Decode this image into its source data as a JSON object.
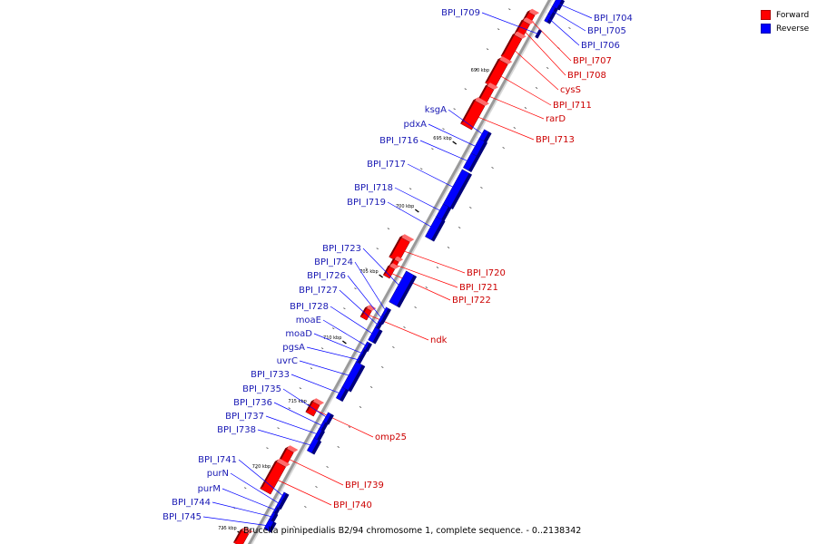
{
  "colors": {
    "forward": "#ff0000",
    "reverse": "#0000ff",
    "forward_text": "#cc0000",
    "reverse_text": "#1a1ab4",
    "backbone": "#9a9a9a"
  },
  "legend": {
    "forward_label": "Forward",
    "reverse_label": "Reverse"
  },
  "caption": "Brucella pinnipedialis B2/94 chromosome 1, complete sequence. - 0..2138342",
  "ticks": [
    "690 kbp",
    "695 kbp",
    "700 kbp",
    "705 kbp",
    "710 kbp",
    "715 kbp",
    "720 kbp",
    "725 kbp"
  ],
  "forward_genes": [
    "BPI_I707",
    "BPI_I708",
    "cysS",
    "BPI_I711",
    "rarD",
    "BPI_I713",
    "BPI_I720",
    "BPI_I721",
    "BPI_I722",
    "ndk",
    "omp25",
    "BPI_I739",
    "BPI_I740"
  ],
  "reverse_genes": [
    "BPI_I704",
    "BPI_I705",
    "BPI_I706",
    "BPI_I709",
    "ksgA",
    "pdxA",
    "BPI_I716",
    "BPI_I717",
    "BPI_I718",
    "BPI_I719",
    "BPI_I723",
    "BPI_I724",
    "BPI_I726",
    "BPI_I727",
    "BPI_I728",
    "moaE",
    "moaD",
    "pgsA",
    "uvrC",
    "BPI_I733",
    "BPI_I735",
    "BPI_I736",
    "BPI_I737",
    "BPI_I738",
    "BPI_I741",
    "purN",
    "purM",
    "BPI_I744",
    "BPI_I745"
  ]
}
